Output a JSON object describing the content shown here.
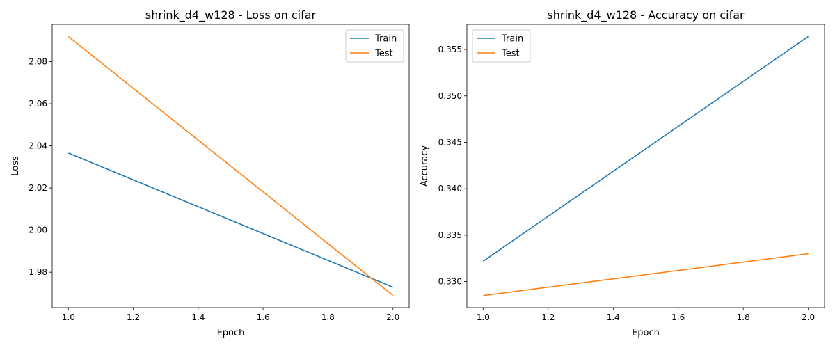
{
  "chart_data": [
    {
      "type": "line",
      "title": "shrink_d4_w128 - Loss on cifar",
      "xlabel": "Epoch",
      "ylabel": "Loss",
      "xlim": [
        0.95,
        2.05
      ],
      "ylim": [
        1.9632,
        2.0977
      ],
      "x_ticks": [
        "1.0",
        "1.2",
        "1.4",
        "1.6",
        "1.8",
        "2.0"
      ],
      "y_ticks": [
        "1.98",
        "2.00",
        "2.02",
        "2.04",
        "2.06",
        "2.08"
      ],
      "legend": "top-right",
      "grid": false,
      "series": [
        {
          "name": "Train",
          "color": "#1f77b4",
          "x": [
            1.0,
            2.0
          ],
          "y": [
            2.0366,
            1.9729
          ]
        },
        {
          "name": "Test",
          "color": "#ff7f0e",
          "x": [
            1.0,
            2.0
          ],
          "y": [
            2.0919,
            1.969
          ]
        }
      ]
    },
    {
      "type": "line",
      "title": "shrink_d4_w128 - Accuracy on cifar",
      "xlabel": "Epoch",
      "ylabel": "Accuracy",
      "xlim": [
        0.95,
        2.05
      ],
      "ylim": [
        0.3272,
        0.3577
      ],
      "x_ticks": [
        "1.0",
        "1.2",
        "1.4",
        "1.6",
        "1.8",
        "2.0"
      ],
      "y_ticks": [
        "0.330",
        "0.335",
        "0.340",
        "0.345",
        "0.350",
        "0.355"
      ],
      "legend": "top-left",
      "grid": false,
      "series": [
        {
          "name": "Train",
          "color": "#1f77b4",
          "x": [
            1.0,
            2.0
          ],
          "y": [
            0.3322,
            0.3564
          ]
        },
        {
          "name": "Test",
          "color": "#ff7f0e",
          "x": [
            1.0,
            2.0
          ],
          "y": [
            0.3285,
            0.333
          ]
        }
      ]
    }
  ]
}
